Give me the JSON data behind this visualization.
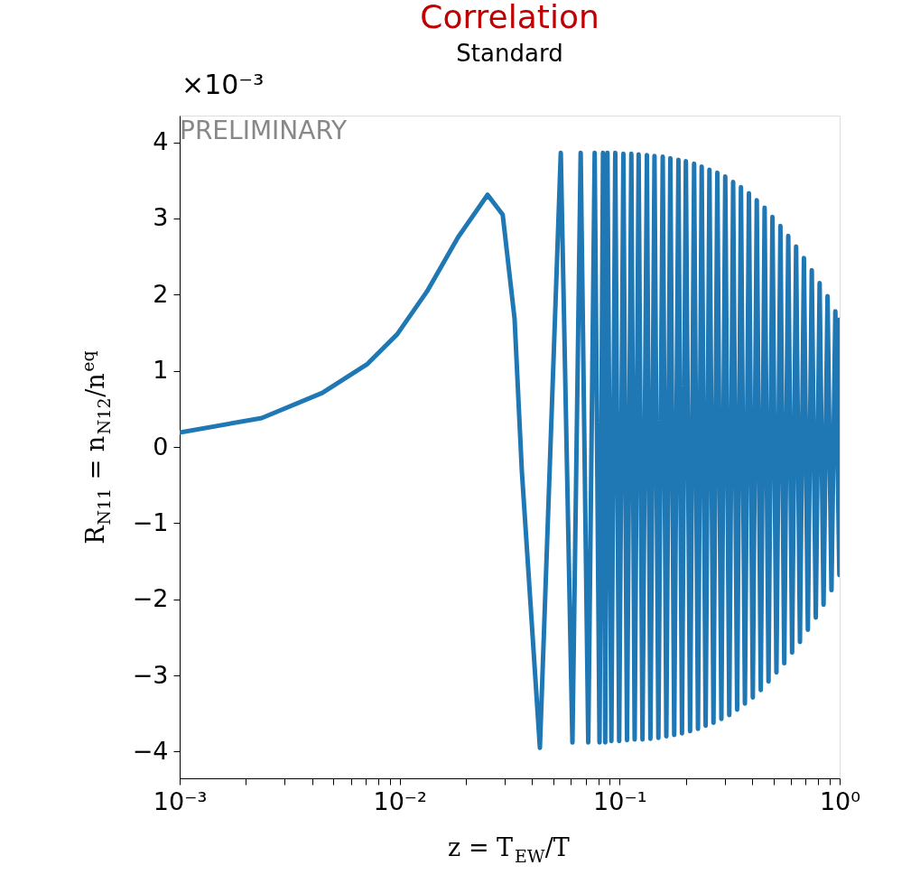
{
  "chart_data": {
    "type": "line",
    "title": "Correlation",
    "subtitle": "Standard",
    "xlabel": "z = T$_{EW}$/T",
    "ylabel": "R$_{N11}$ = n$_{N12}$/n$^{eq}$",
    "annotations": [
      "×10⁻³",
      "PRELIMINARY"
    ],
    "log": "x",
    "grid": false,
    "marker": "none",
    "line_style": "solid",
    "xlim": [
      0.001,
      1
    ],
    "ylim": [
      -4.35,
      4.35
    ],
    "xticks": [
      {
        "value": 0.001,
        "label": "10⁻³"
      },
      {
        "value": 0.002,
        "label": null
      },
      {
        "value": 0.003,
        "label": null
      },
      {
        "value": 0.004,
        "label": null
      },
      {
        "value": 0.005,
        "label": null
      },
      {
        "value": 0.006,
        "label": null
      },
      {
        "value": 0.007,
        "label": null
      },
      {
        "value": 0.008,
        "label": null
      },
      {
        "value": 0.009,
        "label": null
      },
      {
        "value": 0.01,
        "label": "10⁻²"
      },
      {
        "value": 0.02,
        "label": null
      },
      {
        "value": 0.03,
        "label": null
      },
      {
        "value": 0.04,
        "label": null
      },
      {
        "value": 0.05,
        "label": null
      },
      {
        "value": 0.06,
        "label": null
      },
      {
        "value": 0.07,
        "label": null
      },
      {
        "value": 0.08,
        "label": null
      },
      {
        "value": 0.09,
        "label": null
      },
      {
        "value": 0.1,
        "label": "10⁻¹"
      },
      {
        "value": 0.2,
        "label": null
      },
      {
        "value": 0.3,
        "label": null
      },
      {
        "value": 0.4,
        "label": null
      },
      {
        "value": 0.5,
        "label": null
      },
      {
        "value": 0.6,
        "label": null
      },
      {
        "value": 0.7,
        "label": null
      },
      {
        "value": 0.8,
        "label": null
      },
      {
        "value": 0.9,
        "label": null
      },
      {
        "value": 1,
        "label": "10⁰"
      }
    ],
    "yticks": [
      -4,
      -3,
      -2,
      -1,
      0,
      1,
      2,
      3,
      4
    ],
    "x": [
      0.001,
      0.00236,
      0.00445,
      0.00714,
      0.00975,
      0.0133,
      0.0184,
      0.0251,
      0.0294,
      0.0333,
      0.0359,
      0.0434,
      0.054,
      0.061,
      0.0665,
      0.072,
      0.077,
      0.081,
      0.084,
      0.086,
      0.088,
      0.0917,
      0.0955,
      0.0995,
      0.104,
      0.108,
      0.113,
      0.117,
      0.122,
      0.127,
      0.133,
      0.138,
      0.144,
      0.15,
      0.157,
      0.163,
      0.17,
      0.177,
      0.185,
      0.192,
      0.2,
      0.209,
      0.218,
      0.227,
      0.236,
      0.246,
      0.256,
      0.267,
      0.278,
      0.29,
      0.302,
      0.315,
      0.328,
      0.342,
      0.356,
      0.371,
      0.387,
      0.403,
      0.42,
      0.438,
      0.456,
      0.475,
      0.495,
      0.516,
      0.538,
      0.56,
      0.584,
      0.608,
      0.634,
      0.66,
      0.688,
      0.717,
      0.747,
      0.779,
      0.811,
      0.845,
      0.881,
      0.918,
      0.956,
      0.997,
      1.0
    ],
    "series": [
      {
        "color": "#1f77b4",
        "values": [
          0.19,
          0.38,
          0.71,
          1.09,
          1.48,
          2.04,
          2.75,
          3.31,
          3.05,
          1.68,
          -0.3,
          -3.95,
          3.86,
          -3.88,
          3.86,
          -3.88,
          3.86,
          -3.88,
          3.86,
          -3.88,
          3.86,
          -3.86,
          3.86,
          -3.86,
          3.85,
          -3.85,
          3.85,
          -3.84,
          3.84,
          -3.84,
          3.83,
          -3.83,
          3.82,
          -3.82,
          3.81,
          -3.8,
          3.79,
          -3.78,
          3.77,
          -3.76,
          3.75,
          -3.73,
          3.72,
          -3.7,
          3.68,
          -3.66,
          3.64,
          -3.62,
          3.6,
          -3.57,
          3.55,
          -3.52,
          3.48,
          -3.45,
          3.41,
          -3.37,
          3.33,
          -3.29,
          3.24,
          -3.19,
          3.14,
          -3.08,
          3.02,
          -2.96,
          2.9,
          -2.84,
          2.77,
          -2.7,
          2.63,
          -2.56,
          2.48,
          -2.4,
          2.32,
          -2.24,
          2.15,
          -2.07,
          1.98,
          -1.88,
          1.78,
          -1.68,
          1.67
        ]
      }
    ]
  }
}
